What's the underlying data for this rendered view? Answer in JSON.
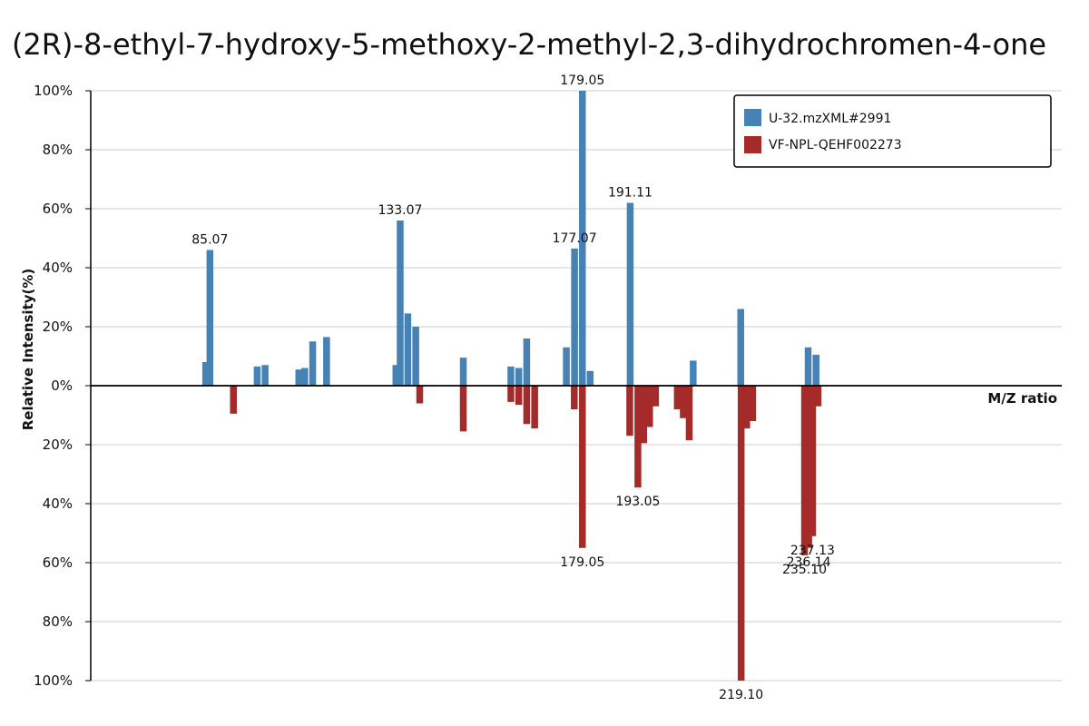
{
  "chart_data": {
    "type": "bar",
    "title": "(2R)-8-ethyl-7-hydroxy-5-methoxy-2-methyl-2,3-dihydrochromen-4-one",
    "xlabel": "M/Z ratio",
    "ylabel": "Relative Intensity(%)",
    "ylim": [
      -100,
      100
    ],
    "xlim": [
      55,
      300
    ],
    "y_ticks": [
      "100%",
      "80%",
      "60%",
      "40%",
      "20%",
      "0%",
      "20%",
      "40%",
      "60%",
      "80%",
      "100%"
    ],
    "grid": true,
    "legend_position": "top-right",
    "colors": {
      "top": "#4682b4",
      "bottom": "#a52a2a"
    },
    "series": [
      {
        "name": "U-32.mzXML#2991",
        "direction": "up",
        "peaks": [
          {
            "mz": 84.0,
            "intensity": 8
          },
          {
            "mz": 85.07,
            "intensity": 46,
            "label": "85.07"
          },
          {
            "mz": 97.0,
            "intensity": 6.5
          },
          {
            "mz": 99.0,
            "intensity": 7
          },
          {
            "mz": 107.5,
            "intensity": 5.5
          },
          {
            "mz": 109.0,
            "intensity": 6
          },
          {
            "mz": 111.0,
            "intensity": 15
          },
          {
            "mz": 114.5,
            "intensity": 16.5
          },
          {
            "mz": 132.0,
            "intensity": 7
          },
          {
            "mz": 133.07,
            "intensity": 56,
            "label": "133.07"
          },
          {
            "mz": 135.0,
            "intensity": 24.5
          },
          {
            "mz": 137.0,
            "intensity": 20
          },
          {
            "mz": 149.0,
            "intensity": 9.5
          },
          {
            "mz": 161.0,
            "intensity": 6.5
          },
          {
            "mz": 163.0,
            "intensity": 6
          },
          {
            "mz": 165.0,
            "intensity": 16
          },
          {
            "mz": 175.0,
            "intensity": 13
          },
          {
            "mz": 177.07,
            "intensity": 46.5,
            "label": "177.07"
          },
          {
            "mz": 179.05,
            "intensity": 100,
            "label": "179.05"
          },
          {
            "mz": 181.0,
            "intensity": 5
          },
          {
            "mz": 191.11,
            "intensity": 62,
            "label": "191.11"
          },
          {
            "mz": 207.0,
            "intensity": 8.5
          },
          {
            "mz": 219.0,
            "intensity": 26
          },
          {
            "mz": 236.0,
            "intensity": 13
          },
          {
            "mz": 238.0,
            "intensity": 10.5
          }
        ]
      },
      {
        "name": "VF-NPL-QEHF002273",
        "direction": "down",
        "peaks": [
          {
            "mz": 91.0,
            "intensity": 9.5
          },
          {
            "mz": 138.0,
            "intensity": 6
          },
          {
            "mz": 149.0,
            "intensity": 15.5
          },
          {
            "mz": 161.0,
            "intensity": 5.5
          },
          {
            "mz": 163.0,
            "intensity": 6.5
          },
          {
            "mz": 165.0,
            "intensity": 13
          },
          {
            "mz": 167.0,
            "intensity": 14.5
          },
          {
            "mz": 177.0,
            "intensity": 8
          },
          {
            "mz": 179.05,
            "intensity": 55,
            "label": "179.05"
          },
          {
            "mz": 191.0,
            "intensity": 17
          },
          {
            "mz": 193.05,
            "intensity": 34.5,
            "label": "193.05"
          },
          {
            "mz": 194.5,
            "intensity": 19.5
          },
          {
            "mz": 196.0,
            "intensity": 14
          },
          {
            "mz": 197.5,
            "intensity": 7
          },
          {
            "mz": 203.0,
            "intensity": 8
          },
          {
            "mz": 204.5,
            "intensity": 11
          },
          {
            "mz": 206.0,
            "intensity": 18.5
          },
          {
            "mz": 219.1,
            "intensity": 100,
            "label": "219.10"
          },
          {
            "mz": 220.5,
            "intensity": 14.5
          },
          {
            "mz": 222.0,
            "intensity": 12
          },
          {
            "mz": 235.1,
            "intensity": 57.5,
            "label": "235.10"
          },
          {
            "mz": 236.14,
            "intensity": 55,
            "label": "236.14"
          },
          {
            "mz": 237.13,
            "intensity": 51,
            "label": "237.13"
          },
          {
            "mz": 238.5,
            "intensity": 7
          }
        ]
      }
    ]
  }
}
